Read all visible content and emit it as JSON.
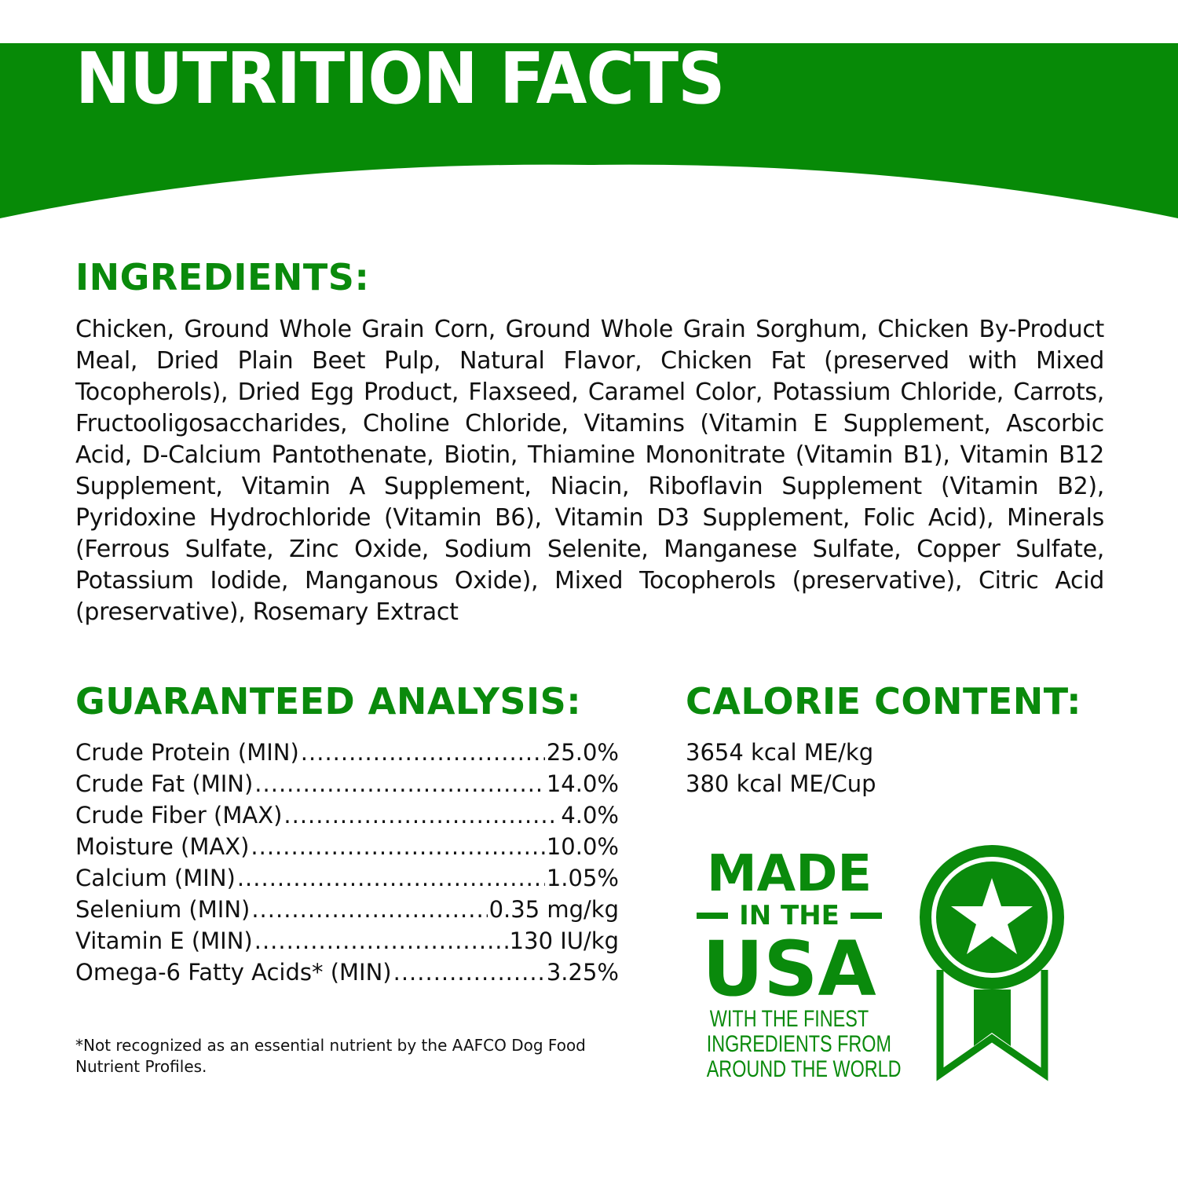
{
  "colors": {
    "brand_green": "#078a07",
    "text": "#111111"
  },
  "header": {
    "title": "NUTRITION FACTS"
  },
  "ingredients": {
    "heading": "INGREDIENTS:",
    "text": "Chicken, Ground Whole Grain Corn, Ground Whole Grain Sorghum, Chicken By-Product Meal, Dried Plain Beet Pulp, Natural Flavor, Chicken Fat (preserved with Mixed Tocopherols), Dried Egg Product, Flaxseed, Caramel Color, Potassium Chloride, Carrots, Fructooligosaccharides, Choline Chloride, Vitamins (Vitamin E Supplement, Ascorbic Acid, D-Calcium Pantothenate, Biotin, Thiamine Mononitrate (Vitamin B1), Vitamin B12 Supplement, Vitamin A Supplement, Niacin, Riboflavin Supplement (Vitamin B2), Pyridoxine Hydrochloride (Vitamin B6), Vitamin D3 Supplement, Folic Acid), Minerals (Ferrous Sulfate, Zinc Oxide, Sodium Selenite, Manganese Sulfate, Copper Sulfate, Potassium Iodide, Manganous Oxide), Mixed Tocopherols (preservative), Citric Acid (preservative), Rosemary Extract"
  },
  "analysis": {
    "heading": "GUARANTEED ANALYSIS:",
    "rows": [
      {
        "label": "Crude Protein (MIN)",
        "value": "25.0%"
      },
      {
        "label": "Crude Fat (MIN)",
        "value": "14.0%"
      },
      {
        "label": "Crude Fiber (MAX)",
        "value": "4.0%"
      },
      {
        "label": "Moisture (MAX)",
        "value": "10.0%"
      },
      {
        "label": "Calcium (MIN)",
        "value": "1.05%"
      },
      {
        "label": "Selenium (MIN)",
        "value": "0.35 mg/kg"
      },
      {
        "label": "Vitamin E (MIN)",
        "value": "130 IU/kg"
      },
      {
        "label": "Omega-6 Fatty Acids* (MIN)",
        "value": "3.25%"
      }
    ],
    "footnote": "*Not recognized as an essential nutrient by the AAFCO Dog Food Nutrient Profiles."
  },
  "calorie": {
    "heading": "CALORIE CONTENT:",
    "lines": [
      "3654 kcal ME/kg",
      "380 kcal ME/Cup"
    ]
  },
  "badge": {
    "made": "MADE",
    "in_the": "IN THE",
    "usa": "USA",
    "sub": [
      "WITH THE FINEST",
      "INGREDIENTS FROM",
      "AROUND THE WORLD"
    ],
    "icon": "award-ribbon-star-icon"
  }
}
